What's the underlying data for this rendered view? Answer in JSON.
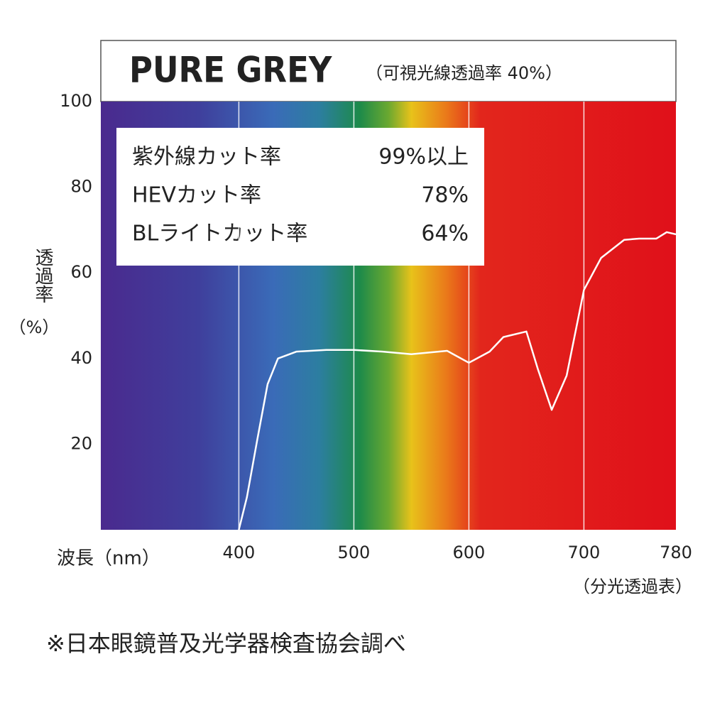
{
  "chart_data": {
    "type": "line",
    "title": "PURE GREY",
    "subtitle": "（可視光線透過率 40%）",
    "y_label": "透過率",
    "y_label_unit": "（%）",
    "x_label": "波長（nm）",
    "x_note": "（分光透過表）",
    "footnote": "※日本眼鏡普及光学器検査協会調べ",
    "info": [
      {
        "label": "紫外線カット率",
        "value": "99%以上"
      },
      {
        "label": "HEVカット率",
        "value": "78%"
      },
      {
        "label": "BLライトカット率",
        "value": "64%"
      }
    ],
    "x": [
      400,
      407,
      416,
      425,
      434,
      450,
      476,
      500,
      525,
      550,
      581,
      600,
      618,
      630,
      650,
      660,
      672,
      685,
      700,
      715,
      735,
      748,
      763,
      772,
      780
    ],
    "series": [
      {
        "color": "#ffffff",
        "values": [
          0,
          7.6,
          21,
          34,
          40,
          41.6,
          42,
          42,
          41.6,
          41,
          41.8,
          39,
          41.6,
          45,
          46.3,
          37.5,
          28,
          36,
          56,
          63.5,
          67.7,
          68,
          68,
          69.5,
          69
        ]
      }
    ],
    "xlim": [
      280,
      780
    ],
    "xticks": [
      400,
      500,
      600,
      700,
      780
    ],
    "ylim": [
      0,
      100
    ],
    "yticks": [
      20,
      40,
      60,
      80,
      100
    ],
    "grid": true
  }
}
